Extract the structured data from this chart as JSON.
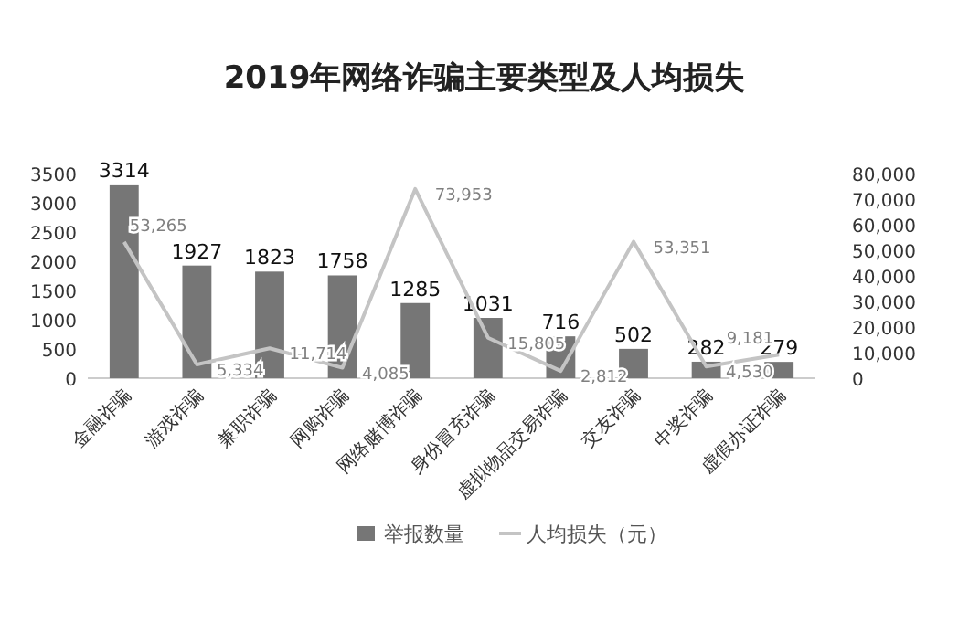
{
  "chart_data": {
    "type": "bar",
    "title": "2019年网络诈骗主要类型及人均损失",
    "categories": [
      "金融诈骗",
      "游戏诈骗",
      "兼职诈骗",
      "网购诈骗",
      "网络赌博诈骗",
      "身份冒充诈骗",
      "虚拟物品交易诈骗",
      "交友诈骗",
      "中奖诈骗",
      "虚假办证诈骗"
    ],
    "series": [
      {
        "name": "举报数量",
        "color": "#767676",
        "values": [
          3314,
          1927,
          1823,
          1758,
          1285,
          1031,
          716,
          502,
          282,
          279
        ],
        "value_labels": [
          "3314",
          "1927",
          "1823",
          "1758",
          "1285",
          "1031",
          "716",
          "502",
          "282",
          "279"
        ]
      },
      {
        "name": "人均损失（元）",
        "type": "line",
        "axis": "y2",
        "color": "#c4c4c4",
        "values": [
          53265,
          5334,
          11714,
          4085,
          73953,
          15805,
          2812,
          53351,
          4530,
          9181
        ],
        "value_labels": [
          "53,265",
          "5,334",
          "11,714",
          "4,085",
          "73,953",
          "15,805",
          "2,812",
          "53,351",
          "4,530",
          "9,181"
        ]
      }
    ],
    "ylim": [
      0,
      3500
    ],
    "yticks": [
      0,
      500,
      1000,
      1500,
      2000,
      2500,
      3000,
      3500
    ],
    "y2lim": [
      0,
      80000
    ],
    "y2ticks": [
      0,
      {
        "value": 10000,
        "label": "10,000"
      },
      {
        "value": 20000,
        "label": "20,000"
      },
      {
        "value": 30000,
        "label": "30,000"
      },
      {
        "value": 40000,
        "label": "40,000"
      },
      {
        "value": 50000,
        "label": "50,000"
      },
      {
        "value": 60000,
        "label": "60,000"
      },
      {
        "value": 70000,
        "label": "70,000"
      },
      {
        "value": 80000,
        "label": "80,000"
      }
    ],
    "legend": "bottom"
  }
}
